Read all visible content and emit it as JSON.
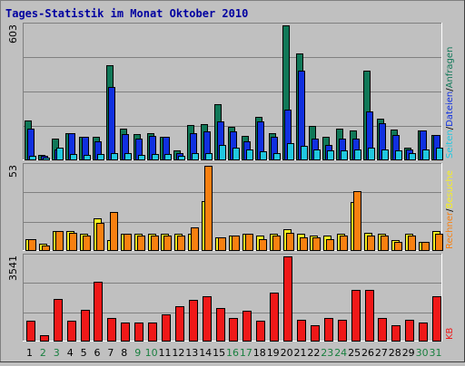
{
  "title": "Tages-Statistik im Monat Oktober 2010",
  "colors": {
    "background": "#c0c0c0",
    "panel": "#c0c0c0",
    "grid": "#808080",
    "title": "#0000a0",
    "anfragen": "#107858",
    "dateien": "#1030e0",
    "seiten": "#20c8e0",
    "besuche": "#f8f020",
    "rechner": "#f88010",
    "kb": "#f01818",
    "weekday_label": "#000000",
    "weekend_label": "#1a8040",
    "separator": "#000000",
    "bar_outline": "#000000"
  },
  "chart_data": [
    {
      "type": "bar",
      "name": "requests",
      "max_label": "603",
      "ylim": [
        0,
        603
      ],
      "legend": [
        {
          "label": "Anfragen",
          "color": "#107858"
        },
        {
          "label": "Dateien",
          "color": "#1030e0"
        },
        {
          "label": "Seiten",
          "color": "#20c8e0"
        }
      ],
      "separator": "/",
      "categories": [
        "1",
        "2",
        "3",
        "4",
        "5",
        "6",
        "7",
        "8",
        "9",
        "10",
        "11",
        "12",
        "13",
        "14",
        "15",
        "16",
        "17",
        "18",
        "19",
        "20",
        "21",
        "22",
        "23",
        "24",
        "25",
        "26",
        "27",
        "28",
        "29",
        "30",
        "31"
      ],
      "series": [
        {
          "name": "Anfragen",
          "values": [
            175,
            20,
            95,
            120,
            100,
            100,
            425,
            140,
            115,
            120,
            100,
            40,
            155,
            160,
            250,
            145,
            105,
            190,
            120,
            603,
            475,
            150,
            100,
            140,
            130,
            400,
            185,
            135,
            55,
            130,
            110
          ]
        },
        {
          "name": "Dateien",
          "values": [
            140,
            15,
            45,
            120,
            100,
            80,
            325,
            115,
            95,
            105,
            100,
            30,
            120,
            125,
            170,
            125,
            80,
            170,
            100,
            225,
            400,
            95,
            65,
            95,
            95,
            215,
            165,
            110,
            45,
            130,
            110
          ]
        },
        {
          "name": "Seiten",
          "values": [
            15,
            10,
            55,
            25,
            20,
            25,
            30,
            30,
            20,
            25,
            25,
            15,
            30,
            30,
            65,
            55,
            45,
            35,
            30,
            75,
            60,
            45,
            40,
            40,
            45,
            55,
            45,
            40,
            30,
            45,
            55
          ]
        }
      ]
    },
    {
      "type": "bar",
      "name": "visits",
      "max_label": "53",
      "ylim": [
        0,
        53
      ],
      "legend": [
        {
          "label": "Besuche",
          "color": "#f8f020"
        },
        {
          "label": "Rechner",
          "color": "#f88010"
        }
      ],
      "separator": "/",
      "categories": [
        "1",
        "2",
        "3",
        "4",
        "5",
        "6",
        "7",
        "8",
        "9",
        "10",
        "11",
        "12",
        "13",
        "14",
        "15",
        "16",
        "17",
        "18",
        "19",
        "20",
        "21",
        "22",
        "23",
        "24",
        "25",
        "26",
        "27",
        "28",
        "29",
        "30",
        "31"
      ],
      "series": [
        {
          "name": "Besuche",
          "values": [
            7,
            4,
            12,
            12,
            10,
            20,
            6,
            10,
            10,
            10,
            10,
            10,
            10,
            31,
            8,
            9,
            10,
            9,
            10,
            13,
            10,
            9,
            9,
            10,
            30,
            11,
            10,
            6,
            10,
            5,
            12
          ]
        },
        {
          "name": "Rechner",
          "values": [
            7,
            3,
            12,
            11,
            9,
            17,
            24,
            10,
            9,
            9,
            9,
            9,
            14,
            53,
            8,
            9,
            10,
            7,
            9,
            11,
            8,
            8,
            7,
            9,
            37,
            9,
            9,
            5,
            9,
            5,
            10
          ]
        }
      ]
    },
    {
      "type": "bar",
      "name": "kb",
      "max_label": "3541",
      "ylim": [
        0,
        3541
      ],
      "legend": [
        {
          "label": "KB",
          "color": "#f01818"
        }
      ],
      "categories": [
        "1",
        "2",
        "3",
        "4",
        "5",
        "6",
        "7",
        "8",
        "9",
        "10",
        "11",
        "12",
        "13",
        "14",
        "15",
        "16",
        "17",
        "18",
        "19",
        "20",
        "21",
        "22",
        "23",
        "24",
        "25",
        "26",
        "27",
        "28",
        "29",
        "30",
        "31"
      ],
      "series": [
        {
          "name": "KB",
          "values": [
            850,
            220,
            1770,
            850,
            1280,
            2460,
            970,
            760,
            760,
            760,
            1120,
            1450,
            1720,
            1850,
            1380,
            950,
            1250,
            850,
            2000,
            3541,
            890,
            650,
            940,
            860,
            2150,
            2150,
            950,
            640,
            880,
            780,
            1850
          ]
        }
      ]
    }
  ],
  "weekend_days": [
    "2",
    "3",
    "9",
    "10",
    "16",
    "17",
    "23",
    "24",
    "30",
    "31"
  ],
  "kb_side_label": "KB"
}
